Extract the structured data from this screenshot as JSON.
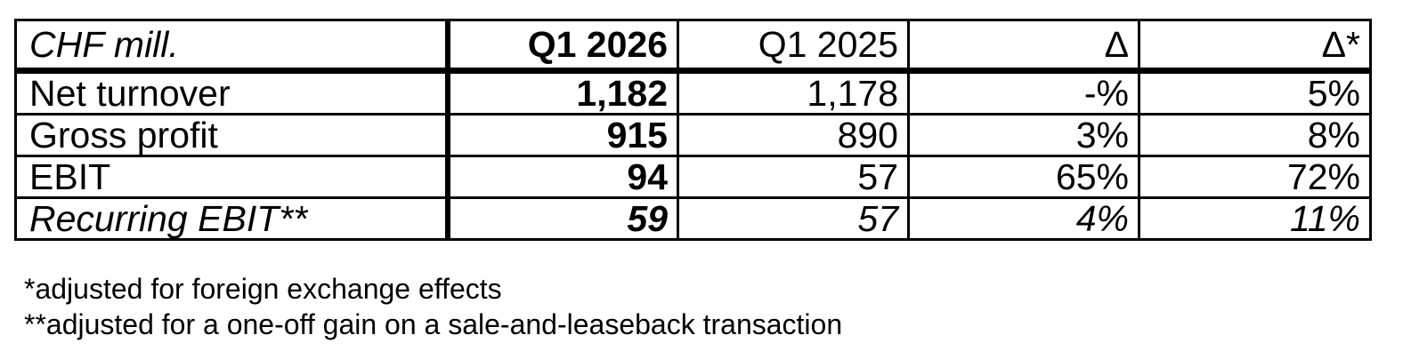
{
  "table": {
    "header": {
      "unit": "CHF mill.",
      "current": "Q1 2026",
      "previous": "Q1 2025",
      "delta": "Δ",
      "delta_fx": "Δ*"
    },
    "rows": [
      {
        "label": "Net turnover",
        "current": "1,182",
        "previous": "1,178",
        "delta": "-%",
        "delta_fx": "5%"
      },
      {
        "label": "Gross profit",
        "current": "915",
        "previous": "890",
        "delta": "3%",
        "delta_fx": "8%"
      },
      {
        "label": "EBIT",
        "current": "94",
        "previous": "57",
        "delta": "65%",
        "delta_fx": "72%"
      },
      {
        "label": "Recurring EBIT**",
        "current": "59",
        "previous": "57",
        "delta": "4%",
        "delta_fx": "11%"
      }
    ]
  },
  "footnotes": [
    "*adjusted for foreign exchange effects",
    "**adjusted for a one-off gain on a sale-and-leaseback transaction"
  ]
}
